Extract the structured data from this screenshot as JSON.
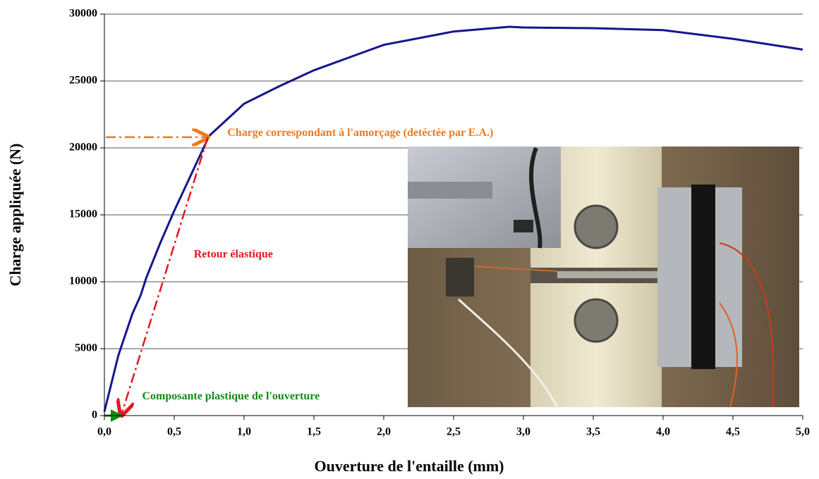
{
  "chart_data": {
    "type": "line",
    "xlabel": "Ouverture de l'entaille (mm)",
    "ylabel": "Charge appliquée (N)",
    "x": [
      0,
      0.05,
      0.1,
      0.2,
      0.26,
      0.3,
      0.4,
      0.5,
      0.75,
      1.0,
      1.25,
      1.5,
      2.0,
      2.5,
      2.9,
      3.0,
      3.5,
      4.0,
      4.5,
      5.0
    ],
    "series": [
      {
        "color": "#16168a",
        "values": [
          300,
          2400,
          4500,
          7600,
          9000,
          10300,
          12900,
          15300,
          20900,
          23300,
          24600,
          25800,
          27700,
          28700,
          29050,
          29000,
          28950,
          28800,
          28150,
          27350
        ]
      }
    ],
    "xlim": [
      0,
      5
    ],
    "ylim": [
      0,
      30000
    ],
    "xticks": [
      {
        "value": 0,
        "label": "0,0"
      },
      {
        "value": 0.5,
        "label": "0,5"
      },
      {
        "value": 1,
        "label": "1,0"
      },
      {
        "value": 1.5,
        "label": "1,5"
      },
      {
        "value": 2,
        "label": "2,0"
      },
      {
        "value": 2.5,
        "label": "2,5"
      },
      {
        "value": 3,
        "label": "3,0"
      },
      {
        "value": 3.5,
        "label": "3,5"
      },
      {
        "value": 4,
        "label": "4,0"
      },
      {
        "value": 4.5,
        "label": "4,5"
      },
      {
        "value": 5,
        "label": "5,0"
      }
    ],
    "yticks": [
      0,
      5000,
      10000,
      15000,
      20000,
      25000,
      30000
    ],
    "grid": true,
    "annotations": [
      {
        "text": "Charge correspondant à l'amorçage (detéctée par E.A.)",
        "color": "#f07820",
        "x": [
          0.01,
          0.74
        ],
        "y": [
          20800,
          20800
        ]
      },
      {
        "text": "Retour élastique",
        "color": "#e8141e",
        "x": [
          0.74,
          0.12
        ],
        "y": [
          20800,
          0
        ]
      },
      {
        "text": "Composante plastique de l'ouverture",
        "color": "#108c10",
        "x": [
          0,
          0.12
        ],
        "y": [
          0,
          0
        ]
      }
    ]
  }
}
